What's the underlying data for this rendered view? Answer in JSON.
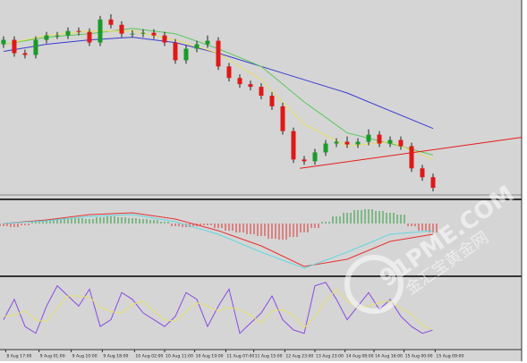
{
  "chart_data": [
    {
      "type": "candlestick",
      "up_color": "#1a9a2a",
      "down_color": "#e01818",
      "xlim": [
        -0.33,
        48.25
      ],
      "ylim": [
        0,
        220
      ],
      "open": [
        170,
        175,
        160,
        158,
        175,
        180,
        180,
        185,
        184,
        172,
        198,
        192,
        182,
        182,
        183,
        180,
        172,
        152,
        165,
        170,
        174,
        145,
        132,
        125,
        122,
        112,
        100,
        72,
        40,
        38,
        48,
        58,
        60,
        57,
        60,
        68,
        58,
        62,
        55,
        30,
        20
      ],
      "high": [
        179,
        179,
        164,
        179,
        184,
        184,
        189,
        189,
        188,
        202,
        204,
        196,
        186,
        187,
        187,
        184,
        176,
        169,
        174,
        180,
        178,
        149,
        136,
        129,
        126,
        116,
        104,
        76,
        44,
        52,
        62,
        64,
        66,
        64,
        74,
        72,
        66,
        66,
        59,
        34,
        24
      ],
      "low": [
        166,
        156,
        154,
        154,
        171,
        176,
        176,
        180,
        168,
        168,
        188,
        178,
        178,
        178,
        176,
        168,
        148,
        148,
        161,
        166,
        141,
        128,
        121,
        118,
        108,
        96,
        68,
        36,
        34,
        34,
        44,
        54,
        53,
        53,
        56,
        54,
        54,
        51,
        26,
        16,
        4
      ],
      "close": [
        175,
        160,
        158,
        175,
        180,
        180,
        185,
        184,
        172,
        198,
        192,
        182,
        182,
        183,
        180,
        172,
        152,
        165,
        170,
        174,
        145,
        132,
        125,
        122,
        112,
        100,
        72,
        40,
        38,
        48,
        58,
        60,
        57,
        60,
        68,
        58,
        62,
        55,
        30,
        20,
        8
      ],
      "series": [
        {
          "color": "#3a3ad0",
          "x": [
            0,
            4,
            8,
            12,
            16,
            20,
            24,
            28,
            32,
            36,
            40
          ],
          "values": [
            162,
            170,
            175,
            178,
            172,
            160,
            145,
            130,
            115,
            95,
            75
          ]
        },
        {
          "color": "#58c858",
          "x": [
            0,
            4,
            8,
            12,
            16,
            20,
            24,
            28,
            32,
            36,
            40
          ],
          "values": [
            170,
            178,
            182,
            188,
            182,
            165,
            145,
            105,
            70,
            58,
            45
          ]
        },
        {
          "color": "#e6e060",
          "x": [
            0,
            4,
            8,
            12,
            16,
            20,
            24,
            28,
            32,
            36,
            40
          ],
          "values": [
            170,
            180,
            185,
            185,
            175,
            160,
            130,
            80,
            55,
            60,
            40
          ]
        },
        {
          "color": "#e81818",
          "x": [
            27.6,
            48.25
          ],
          "values": [
            30,
            65
          ]
        }
      ]
    },
    {
      "type": "macd",
      "xlim": [
        -0.33,
        48.25
      ],
      "ylim": [
        -58,
        24
      ],
      "up_color": "#2a9a3a",
      "down_color": "#e03030",
      "values": [
        -3,
        -4,
        -2,
        2,
        4,
        5,
        6,
        6,
        5,
        7,
        8,
        7,
        6,
        5,
        4,
        2,
        -3,
        -4,
        -3,
        -2,
        -5,
        -8,
        -10,
        -12,
        -14,
        -17,
        -18,
        -15,
        -10,
        -5,
        2,
        8,
        12,
        15,
        16,
        14,
        12,
        10,
        -3,
        -8,
        -10
      ],
      "series": [
        {
          "color": "#e83030",
          "x": [
            0,
            4,
            8,
            12,
            16,
            20,
            24,
            28,
            32,
            36,
            40
          ],
          "values": [
            0,
            4,
            10,
            12,
            5,
            -8,
            -25,
            -48,
            -40,
            -20,
            -12
          ]
        },
        {
          "color": "#60d8e0",
          "x": [
            0,
            4,
            8,
            12,
            16,
            20,
            24,
            28,
            32,
            36,
            40
          ],
          "values": [
            0,
            3,
            8,
            10,
            2,
            -12,
            -32,
            -50,
            -32,
            -12,
            -8
          ]
        }
      ]
    },
    {
      "type": "stochastic",
      "xlim": [
        -0.33,
        48.25
      ],
      "ylim": [
        0,
        100
      ],
      "series": [
        {
          "color": "#8a4ae0",
          "x": [
            0,
            1,
            2,
            3,
            4,
            5,
            6,
            7,
            8,
            9,
            10,
            11,
            12,
            13,
            14,
            15,
            16,
            17,
            18,
            19,
            20,
            21,
            22,
            23,
            24,
            25,
            26,
            27,
            28,
            29,
            30,
            31,
            32,
            33,
            34,
            35,
            36,
            37,
            38,
            39,
            40
          ],
          "values": [
            40,
            70,
            30,
            20,
            60,
            90,
            75,
            60,
            85,
            30,
            40,
            80,
            70,
            50,
            40,
            30,
            45,
            80,
            70,
            30,
            60,
            85,
            20,
            35,
            50,
            75,
            40,
            25,
            20,
            90,
            95,
            70,
            40,
            60,
            80,
            55,
            70,
            45,
            30,
            20,
            25
          ]
        },
        {
          "color": "#e6e070",
          "x": [
            0,
            1,
            2,
            3,
            4,
            5,
            6,
            7,
            8,
            9,
            10,
            11,
            12,
            13,
            14,
            15,
            16,
            17,
            18,
            19,
            20,
            21,
            22,
            23,
            24,
            25,
            26,
            27,
            28,
            29,
            30,
            31,
            32,
            33,
            34,
            35,
            36,
            37,
            38,
            39,
            40
          ],
          "values": [
            45,
            47,
            53,
            40,
            37,
            57,
            75,
            75,
            73,
            58,
            52,
            50,
            63,
            67,
            53,
            40,
            38,
            52,
            65,
            60,
            53,
            58,
            55,
            47,
            35,
            53,
            55,
            47,
            28,
            45,
            68,
            85,
            68,
            57,
            60,
            65,
            68,
            57,
            48,
            32,
            25
          ]
        }
      ],
      "xticks": [
        {
          "value": 0.2,
          "label": "8 Aug 17:00"
        },
        {
          "value": 3.3,
          "label": "9 Aug 01:00"
        },
        {
          "value": 6.3,
          "label": "9 Aug 10:00"
        },
        {
          "value": 9.2,
          "label": "9 Aug 18:00"
        },
        {
          "value": 12.2,
          "label": "10 Aug 02:00"
        },
        {
          "value": 15,
          "label": "10 Aug 11:00"
        },
        {
          "value": 17.8,
          "label": "10 Aug 19:00"
        },
        {
          "value": 20.7,
          "label": "11 Aug 07:00"
        },
        {
          "value": 23.3,
          "label": "11 Aug 15:00"
        },
        {
          "value": 26.2,
          "label": "12 Aug 23:00"
        },
        {
          "value": 29,
          "label": "13 Aug 23:00"
        },
        {
          "value": 31.8,
          "label": "14 Aug 08:00"
        },
        {
          "value": 34.5,
          "label": "14 Aug 16:00"
        },
        {
          "value": 37.3,
          "label": "15 Aug 00:00"
        },
        {
          "value": 40.2,
          "label": "15 Aug 09:00"
        }
      ]
    }
  ],
  "watermark": {
    "site": "91PME.COM",
    "name": "金汇宝黄金网"
  }
}
